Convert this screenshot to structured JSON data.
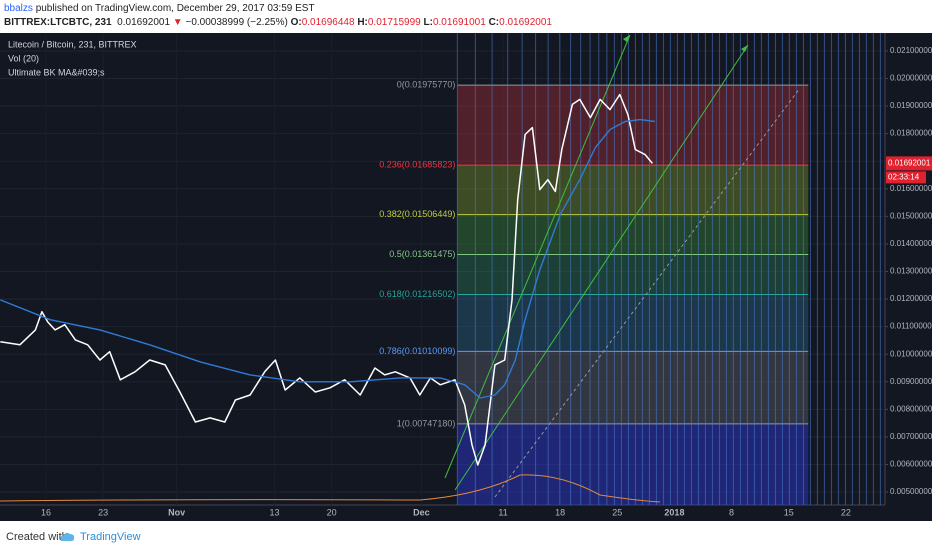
{
  "header": {
    "user": "bbalzs",
    "published": "published on TradingView.com, December 29, 2017 03:59 EST",
    "symbol": "BITTREX:LTCBTC, 231",
    "last": "0.01692001",
    "arrow": "▼",
    "change": "−0.00038999 (−2.25%)",
    "ohlc": [
      {
        "label": "O:",
        "value": "0.01696448"
      },
      {
        "label": "H:",
        "value": "0.01715999"
      },
      {
        "label": "L:",
        "value": "0.01691001"
      },
      {
        "label": "C:",
        "value": "0.01692001"
      }
    ]
  },
  "chart_data": {
    "type": "line",
    "volume_legend": "Vol (20)",
    "series": [
      {
        "name": "Litecoin / Bitcoin, 231, BITTREX",
        "color": "#ffffff",
        "x": [
          -5.6,
          -3.2,
          -1.3,
          -0.5,
          0.2,
          1.1,
          2.3,
          3.6,
          5.1,
          6.6,
          7.8,
          9.1,
          10.9,
          12.7,
          14.6,
          16.4,
          18.3,
          20.1,
          21.9,
          23.2,
          25.0,
          26.8,
          28.1,
          29.3,
          31.1,
          33.0,
          34.8,
          36.6,
          38.5,
          40.3,
          41.5,
          42.8,
          44.6,
          45.8,
          47.1,
          48.3,
          50.1,
          51.3,
          52.2,
          52.9,
          53.8,
          55.0,
          56.2,
          57.1,
          57.8,
          58.7,
          59.6,
          60.5,
          61.5,
          62.4,
          63.2,
          64.5,
          65.4,
          66.7,
          67.9,
          69.1,
          70.3,
          71.3,
          72.2,
          73.4,
          74.3
        ],
        "values": [
          0.01045,
          0.01034,
          0.01088,
          0.01154,
          0.01117,
          0.01088,
          0.01107,
          0.01052,
          0.01034,
          0.00979,
          0.01009,
          0.00907,
          0.00936,
          0.00979,
          0.00961,
          0.00863,
          0.00754,
          0.00769,
          0.00754,
          0.00834,
          0.00852,
          0.00936,
          0.00979,
          0.0087,
          0.00914,
          0.00863,
          0.00878,
          0.00907,
          0.00852,
          0.0095,
          0.00925,
          0.00936,
          0.00914,
          0.00852,
          0.00914,
          0.00889,
          0.00907,
          0.00816,
          0.00671,
          0.00598,
          0.00671,
          0.00961,
          0.00979,
          0.01197,
          0.01561,
          0.01797,
          0.01822,
          0.01597,
          0.01633,
          0.0159,
          0.01742,
          0.01906,
          0.01924,
          0.01858,
          0.01924,
          0.01887,
          0.01942,
          0.01869,
          0.01742,
          0.01724,
          0.01692
        ]
      },
      {
        "name": "Ultimate BK MA&#039;s",
        "color": "#2e7bd6",
        "x": [
          -5.6,
          0.5,
          6.6,
          12.7,
          18.9,
          25.0,
          31.1,
          37.3,
          43.4,
          48.3,
          51.3,
          53.2,
          55.0,
          56.2,
          57.5,
          58.7,
          60.5,
          63.0,
          65.4,
          67.3,
          69.1,
          70.96,
          72.8,
          74.6
        ],
        "values": [
          0.01197,
          0.01125,
          0.01088,
          0.01034,
          0.00972,
          0.00925,
          0.009,
          0.009,
          0.00914,
          0.00914,
          0.00889,
          0.00841,
          0.00852,
          0.00889,
          0.00979,
          0.01125,
          0.01306,
          0.01506,
          0.01633,
          0.01749,
          0.01815,
          0.01844,
          0.01851,
          0.01844
        ]
      }
    ],
    "xlim": [
      -5.64,
      102.8
    ],
    "xticks": [
      {
        "value": 0,
        "label": "16"
      },
      {
        "value": 7,
        "label": "23"
      },
      {
        "value": 16,
        "label": "Nov"
      },
      {
        "value": 28,
        "label": "13"
      },
      {
        "value": 35,
        "label": "20"
      },
      {
        "value": 46,
        "label": "Dec"
      },
      {
        "value": 56,
        "label": "11"
      },
      {
        "value": 63,
        "label": "18"
      },
      {
        "value": 70,
        "label": "25"
      },
      {
        "value": 77,
        "label": "2018"
      },
      {
        "value": 84,
        "label": "8"
      },
      {
        "value": 91,
        "label": "15"
      },
      {
        "value": 98,
        "label": "22"
      }
    ],
    "ylim": [
      0.00453,
      0.02165
    ],
    "yticks": [
      {
        "value": 0.005,
        "label": "0.00500000"
      },
      {
        "value": 0.006,
        "label": "0.00600000"
      },
      {
        "value": 0.007,
        "label": "0.00700000"
      },
      {
        "value": 0.008,
        "label": "0.00800000"
      },
      {
        "value": 0.009,
        "label": "0.00900000"
      },
      {
        "value": 0.01,
        "label": "0.01000000"
      },
      {
        "value": 0.011,
        "label": "0.01100000"
      },
      {
        "value": 0.012,
        "label": "0.01200000"
      },
      {
        "value": 0.013,
        "label": "0.01300000"
      },
      {
        "value": 0.014,
        "label": "0.01400000"
      },
      {
        "value": 0.015,
        "label": "0.01500000"
      },
      {
        "value": 0.016,
        "label": "0.01600000"
      },
      {
        "value": 0.017,
        "label": "0.01700000"
      },
      {
        "value": 0.018,
        "label": "0.01800000"
      },
      {
        "value": 0.019,
        "label": "0.01900000"
      },
      {
        "value": 0.02,
        "label": "0.02000000"
      },
      {
        "value": 0.021,
        "label": "0.02100000"
      }
    ],
    "grid": true,
    "price_tag": {
      "value": 0.01692001,
      "label": "0.01692001",
      "countdown": "02:33:14",
      "color": "#e0222f"
    },
    "fib": {
      "x": [
        50.4,
        93.4
      ],
      "extension_color": "#2b35c8",
      "levels": [
        {
          "value": 0.0197577,
          "label": "0(0.01975770)",
          "color": "#9598a1",
          "fill": "#c2303c"
        },
        {
          "value": 0.01685823,
          "label": "0.236(0.01685823)",
          "color": "#f23645",
          "fill": "#8fae2a"
        },
        {
          "value": 0.01506449,
          "label": "0.382(0.01506449)",
          "color": "#c0d040",
          "fill": "#3f9a3c"
        },
        {
          "value": 0.01361475,
          "label": "0.5(0.01361475)",
          "color": "#81c784",
          "fill": "#2f8a5c"
        },
        {
          "value": 0.01216502,
          "label": "0.618(0.01216502)",
          "color": "#26a69a",
          "fill": "#2d6f95"
        },
        {
          "value": 0.01010099,
          "label": "0.786(0.01010099)",
          "color": "#5b9cf6",
          "fill": "#6e717c"
        },
        {
          "value": 0.0074718,
          "label": "1(0.00747180)",
          "color": "#9598a1",
          "fill": "#6e717c"
        }
      ]
    }
  },
  "footer": {
    "created": "Created with",
    "brand": "TradingView"
  }
}
